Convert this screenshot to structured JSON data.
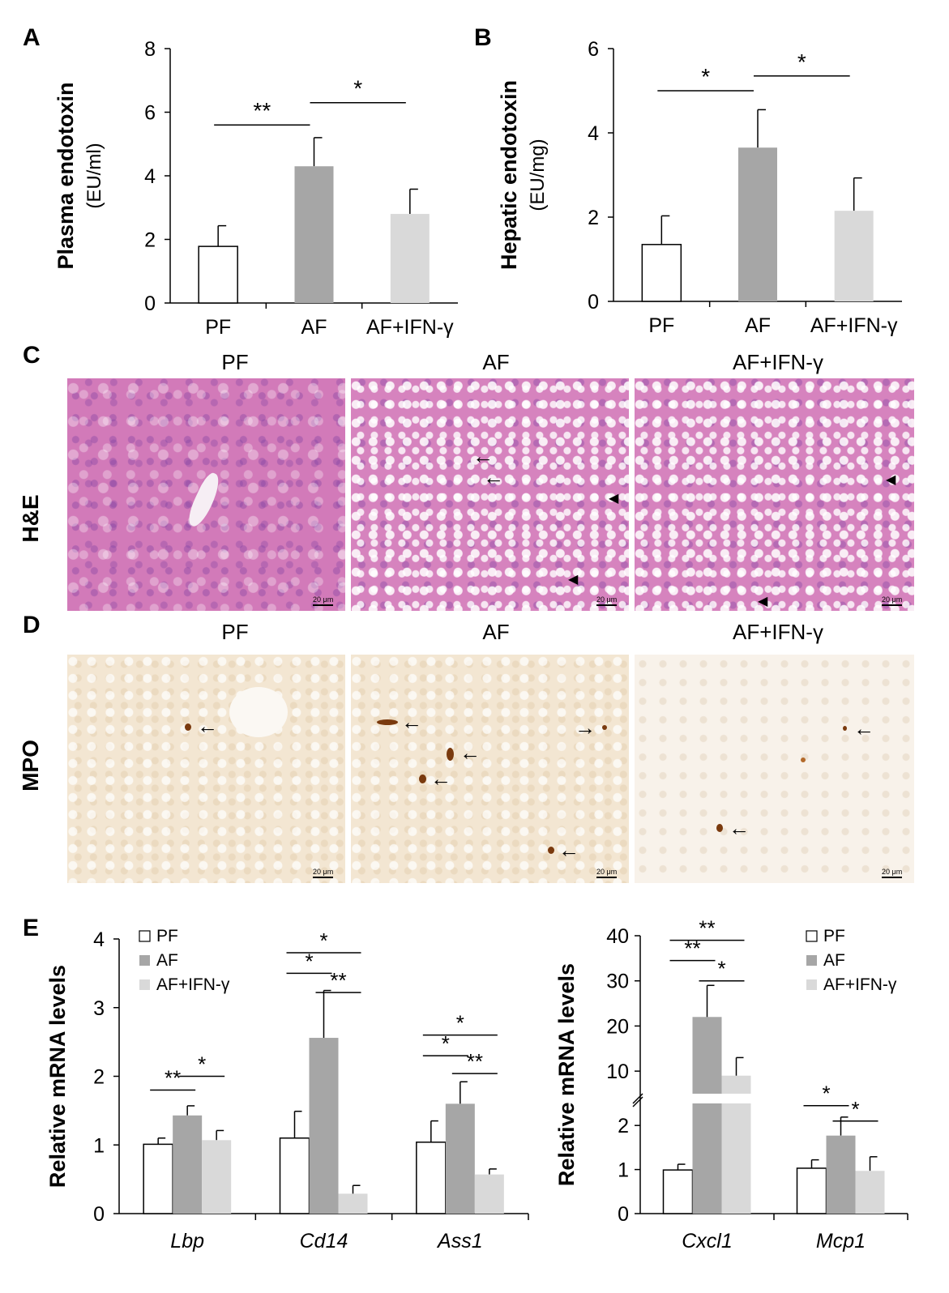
{
  "panel_labels": {
    "a": "A",
    "b": "B",
    "c": "C",
    "d": "D",
    "e": "E"
  },
  "stain_labels": {
    "he": "H&E",
    "mpo": "MPO"
  },
  "column_labels": [
    "PF",
    "AF",
    "AF+IFN-γ"
  ],
  "scale_bar": "20 μm",
  "colors": {
    "PF": "#ffffff",
    "AF": "#a6a6a6",
    "AF+IFN-γ": "#d9d9d9",
    "outline": "#000000"
  },
  "chart_data": [
    {
      "id": "A",
      "type": "bar",
      "ylabel": "Plasma endotoxin",
      "ylabel_unit": "(EU/ml)",
      "categories": [
        "PF",
        "AF",
        "AF+IFN-γ"
      ],
      "values": [
        1.78,
        4.3,
        2.8
      ],
      "errors": [
        0.65,
        0.9,
        0.78
      ],
      "ylim": [
        0,
        8
      ],
      "yticks": [
        0,
        2,
        4,
        6,
        8
      ],
      "significance": [
        {
          "from": 0,
          "to": 1,
          "label": "**",
          "y": 5.6
        },
        {
          "from": 1,
          "to": 2,
          "label": "*",
          "y": 6.3
        }
      ]
    },
    {
      "id": "B",
      "type": "bar",
      "ylabel": "Hepatic endotoxin",
      "ylabel_unit": "(EU/mg)",
      "categories": [
        "PF",
        "AF",
        "AF+IFN-γ"
      ],
      "values": [
        1.35,
        3.65,
        2.15
      ],
      "errors": [
        0.68,
        0.9,
        0.78
      ],
      "ylim": [
        0,
        6
      ],
      "yticks": [
        0,
        2,
        4,
        6
      ],
      "significance": [
        {
          "from": 0,
          "to": 1,
          "label": "*",
          "y": 5.0
        },
        {
          "from": 1,
          "to": 2,
          "label": "*",
          "y": 5.35
        }
      ]
    },
    {
      "id": "E-left",
      "type": "bar",
      "ylabel": "Relative mRNA levels",
      "categories": [
        "Lbp",
        "Cd14",
        "Ass1"
      ],
      "legend": {
        "entries": [
          "PF",
          "AF",
          "AF+IFN-γ"
        ],
        "placement": "top-left"
      },
      "series": [
        {
          "name": "PF",
          "values": [
            1.01,
            1.1,
            1.04
          ],
          "errors": [
            0.09,
            0.39,
            0.31
          ]
        },
        {
          "name": "AF",
          "values": [
            1.43,
            2.56,
            1.6
          ],
          "errors": [
            0.14,
            0.69,
            0.32
          ]
        },
        {
          "name": "AF+IFN-γ",
          "values": [
            1.07,
            0.29,
            0.57
          ],
          "errors": [
            0.14,
            0.12,
            0.08
          ]
        }
      ],
      "ylim": [
        0,
        4
      ],
      "yticks": [
        0,
        1,
        2,
        3,
        4
      ],
      "significance": [
        {
          "group": 0,
          "from": 0,
          "to": 1,
          "label": "**",
          "y": 1.8
        },
        {
          "group": 0,
          "from": 1,
          "to": 2,
          "label": "*",
          "y": 2.0
        },
        {
          "group": 1,
          "from": 0,
          "to": 2,
          "label": "*",
          "y": 3.8
        },
        {
          "group": 1,
          "from": 0,
          "to": 1,
          "label": "*",
          "y": 3.5
        },
        {
          "group": 1,
          "from": 1,
          "to": 2,
          "label": "**",
          "y": 3.22
        },
        {
          "group": 2,
          "from": 0,
          "to": 2,
          "label": "*",
          "y": 2.6
        },
        {
          "group": 2,
          "from": 0,
          "to": 1,
          "label": "*",
          "y": 2.3
        },
        {
          "group": 2,
          "from": 1,
          "to": 2,
          "label": "**",
          "y": 2.04
        }
      ]
    },
    {
      "id": "E-right",
      "type": "bar",
      "ylabel": "Relative mRNA levels",
      "categories": [
        "Cxcl1",
        "Mcp1"
      ],
      "legend": {
        "entries": [
          "PF",
          "AF",
          "AF+IFN-γ"
        ],
        "placement": "top-right"
      },
      "series": [
        {
          "name": "PF",
          "values": [
            0.99,
            1.03
          ],
          "errors": [
            0.13,
            0.19
          ]
        },
        {
          "name": "AF",
          "values": [
            22,
            1.77
          ],
          "errors": [
            7,
            0.42
          ]
        },
        {
          "name": "AF+IFN-γ",
          "values": [
            9,
            0.97
          ],
          "errors": [
            4,
            0.32
          ]
        }
      ],
      "broken_axis": {
        "lower": [
          0,
          2.5
        ],
        "upper": [
          5,
          40
        ]
      },
      "yticks_lower": [
        0,
        1,
        2
      ],
      "yticks_upper": [
        10,
        20,
        30,
        40
      ],
      "significance": [
        {
          "group": 0,
          "from": 0,
          "to": 2,
          "label": "**",
          "y": 39
        },
        {
          "group": 0,
          "from": 0,
          "to": 1,
          "label": "**",
          "y": 34.5
        },
        {
          "group": 0,
          "from": 1,
          "to": 2,
          "label": "*",
          "y": 30
        },
        {
          "group": 1,
          "from": 0,
          "to": 1,
          "label": "*",
          "y": 2.45
        },
        {
          "group": 1,
          "from": 1,
          "to": 2,
          "label": "*",
          "y": 2.1
        }
      ]
    }
  ]
}
